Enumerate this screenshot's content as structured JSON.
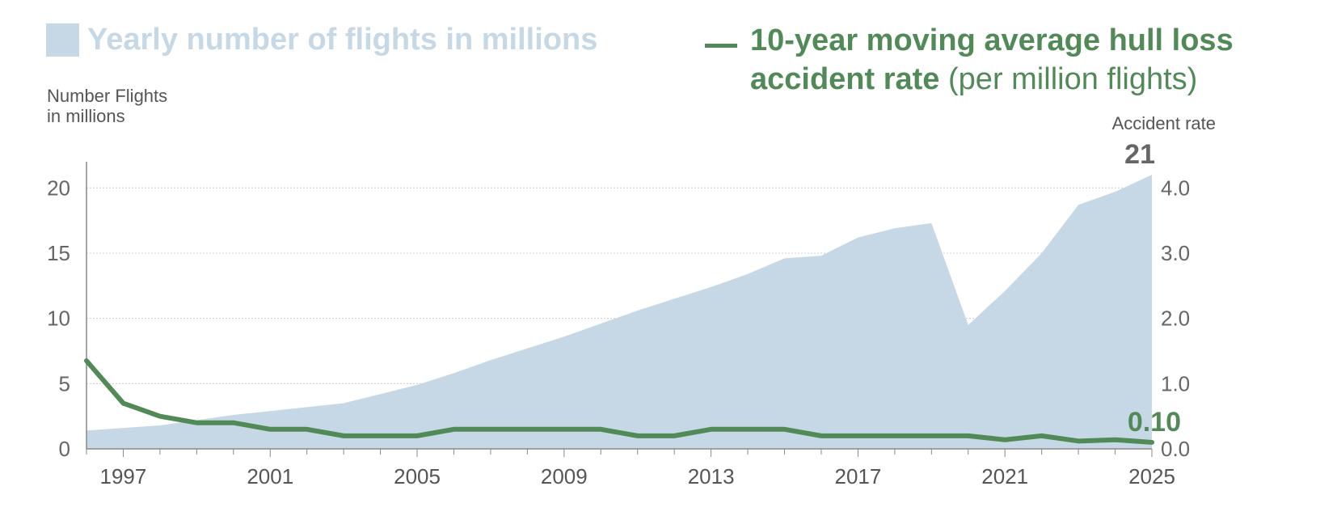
{
  "legend": {
    "flights_label": "Yearly number of flights in millions",
    "rate_label_bold_1": "10-year moving average hull loss",
    "rate_label_bold_2": "accident rate",
    "rate_label_light": "(per million flights)"
  },
  "axes": {
    "left_title_line1": "Number Flights",
    "left_title_line2": "in millions",
    "right_title": "Accident rate"
  },
  "colors": {
    "area": "#c6d8e5",
    "line": "#528a57",
    "label_dark": "#666666"
  },
  "chart_data": {
    "type": "area+line",
    "x": [
      1996,
      1997,
      1998,
      1999,
      2000,
      2001,
      2002,
      2003,
      2004,
      2005,
      2006,
      2007,
      2008,
      2009,
      2010,
      2011,
      2012,
      2013,
      2014,
      2015,
      2016,
      2017,
      2018,
      2019,
      2020,
      2021,
      2022,
      2023,
      2024,
      2025
    ],
    "x_ticks": [
      "1997",
      "2001",
      "2005",
      "2009",
      "2013",
      "2017",
      "2021",
      "2025"
    ],
    "series": [
      {
        "name": "Yearly number of flights in millions",
        "axis": "left",
        "type": "area",
        "values": [
          1.4,
          1.6,
          1.8,
          2.2,
          2.6,
          2.9,
          3.2,
          3.5,
          4.2,
          4.9,
          5.8,
          6.8,
          7.7,
          8.6,
          9.6,
          10.6,
          11.5,
          12.4,
          13.4,
          14.6,
          14.8,
          16.2,
          16.9,
          17.3,
          9.5,
          12.1,
          15.0,
          18.7,
          19.7,
          21.0
        ]
      },
      {
        "name": "10-year moving average hull loss accident rate (per million flights)",
        "axis": "right",
        "type": "line",
        "values": [
          1.35,
          0.7,
          0.5,
          0.4,
          0.4,
          0.3,
          0.3,
          0.2,
          0.2,
          0.2,
          0.3,
          0.3,
          0.3,
          0.3,
          0.3,
          0.2,
          0.2,
          0.3,
          0.3,
          0.3,
          0.2,
          0.2,
          0.2,
          0.2,
          0.2,
          0.14,
          0.2,
          0.12,
          0.14,
          0.1
        ]
      }
    ],
    "y_left": {
      "label": "Number Flights in millions",
      "ticks": [
        "0",
        "5",
        "10",
        "15",
        "20"
      ],
      "range": [
        0,
        22
      ]
    },
    "y_right": {
      "label": "Accident rate",
      "ticks": [
        "0.0",
        "1.0",
        "2.0",
        "3.0",
        "4.0"
      ],
      "range": [
        0,
        4.4
      ]
    },
    "end_labels": {
      "flights": "21",
      "rate": "0.10"
    },
    "grid": true
  }
}
